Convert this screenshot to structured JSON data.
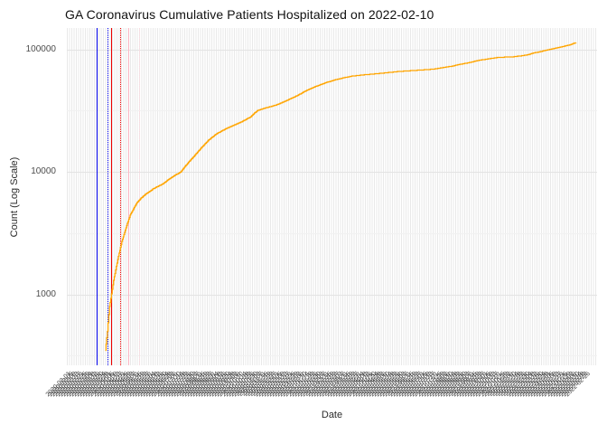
{
  "title": "GA Coronavirus Cumulative Patients Hospitalized on 2022-02-10",
  "y_axis": {
    "label": "Count (Log Scale)",
    "scale": "log10",
    "ticks": [
      {
        "label": "100000",
        "value": 100000
      },
      {
        "label": "10000",
        "value": 10000
      },
      {
        "label": "1000",
        "value": 1000
      }
    ]
  },
  "x_axis": {
    "label": "Date",
    "first_tick_date": "2020-02-01",
    "tick_step_days": 4,
    "tick_count": 190,
    "labels_overlapping_illegible": true
  },
  "colors": {
    "series_line": "#FFA500",
    "vline_blue": "#0000EE",
    "vline_red": "#EE0000",
    "vline_pink": "#FFB9C6",
    "grid_major": "#e3e3e3",
    "grid_minor": "#f1f1f1",
    "tick_text": "#4d4d4d"
  },
  "chart_data": {
    "type": "line",
    "title": "GA Coronavirus Cumulative Patients Hospitalized on 2022-02-10",
    "xlabel": "Date",
    "ylabel": "Count (Log Scale)",
    "y_scale": "log10",
    "ylim": [
      264,
      149000
    ],
    "x_range": [
      "2020-01-31",
      "2022-03-12"
    ],
    "grid": true,
    "legend": false,
    "vlines": [
      {
        "date": "2020-03-15",
        "color": "#0000EE",
        "style": "solid"
      },
      {
        "date": "2020-03-30",
        "color": "#0000EE",
        "style": "dotted"
      },
      {
        "date": "2020-04-05",
        "color": "#EE0000",
        "style": "solid"
      },
      {
        "date": "2020-04-17",
        "color": "#EE0000",
        "style": "dotted"
      },
      {
        "date": "2020-04-30",
        "color": "#FFB9C6",
        "style": "solid"
      },
      {
        "date": "2020-05-15",
        "color": "#FFD6DE",
        "style": "dotted"
      }
    ],
    "series": [
      {
        "name": "Cumulative Patients Hospitalized",
        "color": "#FFA500",
        "points": [
          [
            "2020-03-27",
            350
          ],
          [
            "2020-03-30",
            500
          ],
          [
            "2020-04-02",
            800
          ],
          [
            "2020-04-04",
            930
          ],
          [
            "2020-04-08",
            1300
          ],
          [
            "2020-04-12",
            1700
          ],
          [
            "2020-04-16",
            2170
          ],
          [
            "2020-04-20",
            2700
          ],
          [
            "2020-04-24",
            3210
          ],
          [
            "2020-04-28",
            3800
          ],
          [
            "2020-05-02",
            4430
          ],
          [
            "2020-05-07",
            5000
          ],
          [
            "2020-05-12",
            5600
          ],
          [
            "2020-05-18",
            6100
          ],
          [
            "2020-05-24",
            6540
          ],
          [
            "2020-05-30",
            6900
          ],
          [
            "2020-06-05",
            7300
          ],
          [
            "2020-06-12",
            7650
          ],
          [
            "2020-06-19",
            8000
          ],
          [
            "2020-06-25",
            8500
          ],
          [
            "2020-07-01",
            9000
          ],
          [
            "2020-07-08",
            9500
          ],
          [
            "2020-07-15",
            10000
          ],
          [
            "2020-07-20",
            10900
          ],
          [
            "2020-07-25",
            11800
          ],
          [
            "2020-07-30",
            12700
          ],
          [
            "2020-08-04",
            13600
          ],
          [
            "2020-08-09",
            14700
          ],
          [
            "2020-08-14",
            15800
          ],
          [
            "2020-08-19",
            16900
          ],
          [
            "2020-08-24",
            18100
          ],
          [
            "2020-08-30",
            19300
          ],
          [
            "2020-09-05",
            20500
          ],
          [
            "2020-09-12",
            21500
          ],
          [
            "2020-09-19",
            22600
          ],
          [
            "2020-09-25",
            23400
          ],
          [
            "2020-10-01",
            24200
          ],
          [
            "2020-10-07",
            25000
          ],
          [
            "2020-10-13",
            25900
          ],
          [
            "2020-10-18",
            26900
          ],
          [
            "2020-10-24",
            28000
          ],
          [
            "2020-10-29",
            29800
          ],
          [
            "2020-11-04",
            31800
          ],
          [
            "2020-11-10",
            32600
          ],
          [
            "2020-11-17",
            33500
          ],
          [
            "2020-11-24",
            34300
          ],
          [
            "2020-12-01",
            35200
          ],
          [
            "2020-12-09",
            36800
          ],
          [
            "2020-12-17",
            38500
          ],
          [
            "2020-12-25",
            40400
          ],
          [
            "2021-01-02",
            42400
          ],
          [
            "2021-01-08",
            44400
          ],
          [
            "2021-01-15",
            46500
          ],
          [
            "2021-01-22",
            48400
          ],
          [
            "2021-01-29",
            50300
          ],
          [
            "2021-02-05",
            51900
          ],
          [
            "2021-02-11",
            53500
          ],
          [
            "2021-02-18",
            55000
          ],
          [
            "2021-02-25",
            56600
          ],
          [
            "2021-03-04",
            57700
          ],
          [
            "2021-03-10",
            58800
          ],
          [
            "2021-03-16",
            59700
          ],
          [
            "2021-03-22",
            60600
          ],
          [
            "2021-03-29",
            61200
          ],
          [
            "2021-04-05",
            61800
          ],
          [
            "2021-04-12",
            62300
          ],
          [
            "2021-04-18",
            62700
          ],
          [
            "2021-04-26",
            63300
          ],
          [
            "2021-05-05",
            64000
          ],
          [
            "2021-05-16",
            65000
          ],
          [
            "2021-05-27",
            65900
          ],
          [
            "2021-06-06",
            66500
          ],
          [
            "2021-06-15",
            67000
          ],
          [
            "2021-06-25",
            67600
          ],
          [
            "2021-07-06",
            68200
          ],
          [
            "2021-07-13",
            68700
          ],
          [
            "2021-07-20",
            69300
          ],
          [
            "2021-07-26",
            70200
          ],
          [
            "2021-08-01",
            71200
          ],
          [
            "2021-08-07",
            72000
          ],
          [
            "2021-08-14",
            72900
          ],
          [
            "2021-08-19",
            74200
          ],
          [
            "2021-08-25",
            75500
          ],
          [
            "2021-09-01",
            76700
          ],
          [
            "2021-09-08",
            78000
          ],
          [
            "2021-09-14",
            79600
          ],
          [
            "2021-09-21",
            81300
          ],
          [
            "2021-09-28",
            82400
          ],
          [
            "2021-10-05",
            83600
          ],
          [
            "2021-10-12",
            84700
          ],
          [
            "2021-10-20",
            86000
          ],
          [
            "2021-10-31",
            86500
          ],
          [
            "2021-11-11",
            87000
          ],
          [
            "2021-11-18",
            88000
          ],
          [
            "2021-11-25",
            89000
          ],
          [
            "2021-12-02",
            90500
          ],
          [
            "2021-12-10",
            93500
          ],
          [
            "2021-12-17",
            95000
          ],
          [
            "2021-12-24",
            97000
          ],
          [
            "2021-12-31",
            99000
          ],
          [
            "2022-01-07",
            101000
          ],
          [
            "2022-01-13",
            102700
          ],
          [
            "2022-01-19",
            104500
          ],
          [
            "2022-01-25",
            106500
          ],
          [
            "2022-01-31",
            108500
          ],
          [
            "2022-02-05",
            111000
          ],
          [
            "2022-02-10",
            113500
          ]
        ]
      }
    ]
  }
}
